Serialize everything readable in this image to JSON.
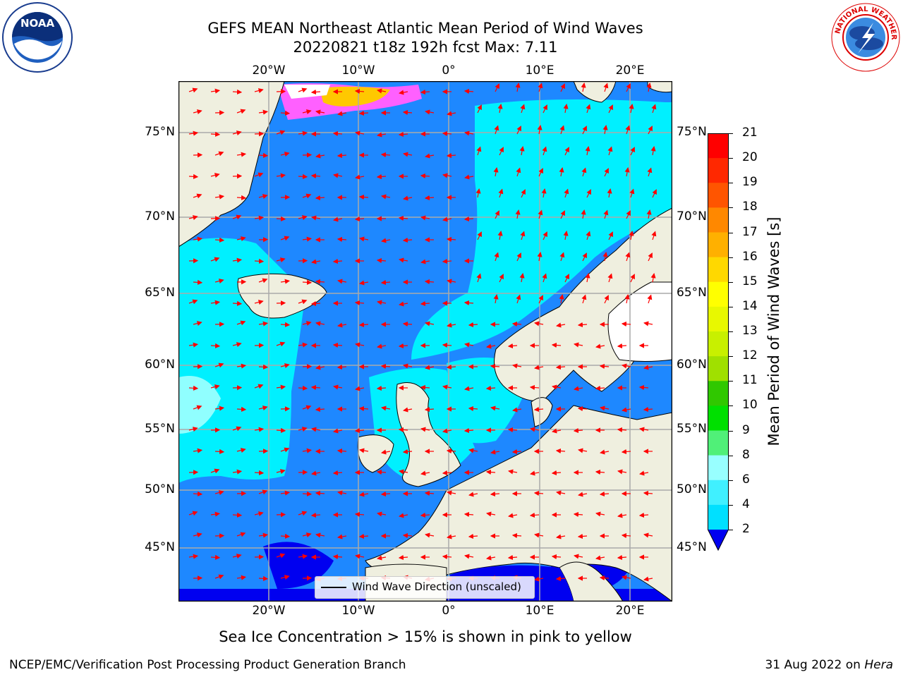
{
  "title_line1": "GEFS MEAN Northeast Atlantic Mean Period of Wind Waves",
  "title_line2": "20220821 t18z 192h fcst   Max: 7.11",
  "lon_labels": [
    "20°W",
    "10°W",
    "0°",
    "10°E",
    "20°E"
  ],
  "lat_labels": [
    "75°N",
    "70°N",
    "65°N",
    "60°N",
    "55°N",
    "50°N",
    "45°N"
  ],
  "colorbar": {
    "label": "Mean Period of Wind Waves [s]",
    "ticks": [
      "2",
      "4",
      "6",
      "8",
      "9",
      "10",
      "11",
      "12",
      "13",
      "14",
      "15",
      "16",
      "17",
      "18",
      "19",
      "20",
      "21"
    ],
    "colors": [
      "#0070ff",
      "#00e0ff",
      "#40f0ff",
      "#98ffff",
      "#50f078",
      "#00e000",
      "#30c800",
      "#a0e000",
      "#c8f000",
      "#e8f800",
      "#ffff00",
      "#ffd800",
      "#ffb000",
      "#ff8800",
      "#ff5500",
      "#ff2800",
      "#ff0000"
    ],
    "extend_color": "#0000f0"
  },
  "legend_label": "Wind Wave Direction (unscaled)",
  "sea_ice_note": "Sea Ice Concentration > 15% is shown in pink to yellow",
  "footer_left": "NCEP/EMC/Verification Post Processing Product Generation Branch",
  "footer_date": "31 Aug 2022 on",
  "footer_machine": "Hera",
  "logos": {
    "left": "NOAA",
    "right": "national-weather-service-logo"
  }
}
